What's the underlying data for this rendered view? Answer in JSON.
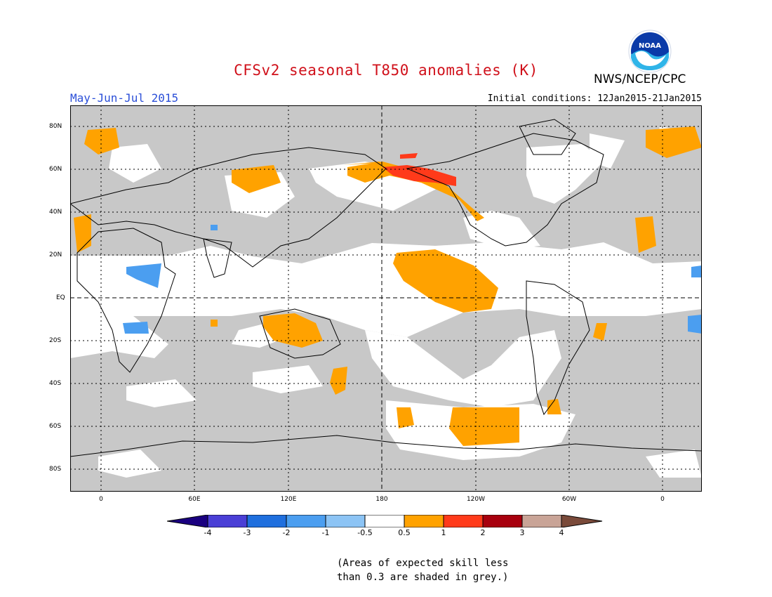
{
  "title": "CFSv2 seasonal T850 anomalies (K)",
  "agency": "NWS/NCEP/CPC",
  "logo_text": "NOAA",
  "period": "May-Jun-Jul 2015",
  "initial_conditions": "Initial conditions: 12Jan2015-21Jan2015",
  "lat_labels": [
    "80N",
    "60N",
    "40N",
    "20N",
    "EQ",
    "20S",
    "40S",
    "60S",
    "80S"
  ],
  "lon_labels": [
    "0",
    "60E",
    "120E",
    "180",
    "120W",
    "60W",
    "0"
  ],
  "colorbar": {
    "labels": [
      "-4",
      "-3",
      "-2",
      "-1",
      "-0.5",
      "0.5",
      "1",
      "2",
      "3",
      "4"
    ],
    "colors": [
      "#1a0080",
      "#4a3fd6",
      "#1f6fde",
      "#4b9ef0",
      "#8cc4f5",
      "#ffffff",
      "#ffa200",
      "#ff3a1a",
      "#a8000e",
      "#c9a497",
      "#7a4a3a"
    ]
  },
  "note_lines": [
    "(Areas of expected skill less",
    "than 0.3 are shaded in grey.)"
  ],
  "colors": {
    "grey_skill": "#c8c8c8",
    "positive_anomaly": "#ffa200",
    "strong_positive": "#ff3a1a",
    "negative_anomaly": "#4b9ef0",
    "title": "#d0101a",
    "period": "#2b4fd8"
  }
}
